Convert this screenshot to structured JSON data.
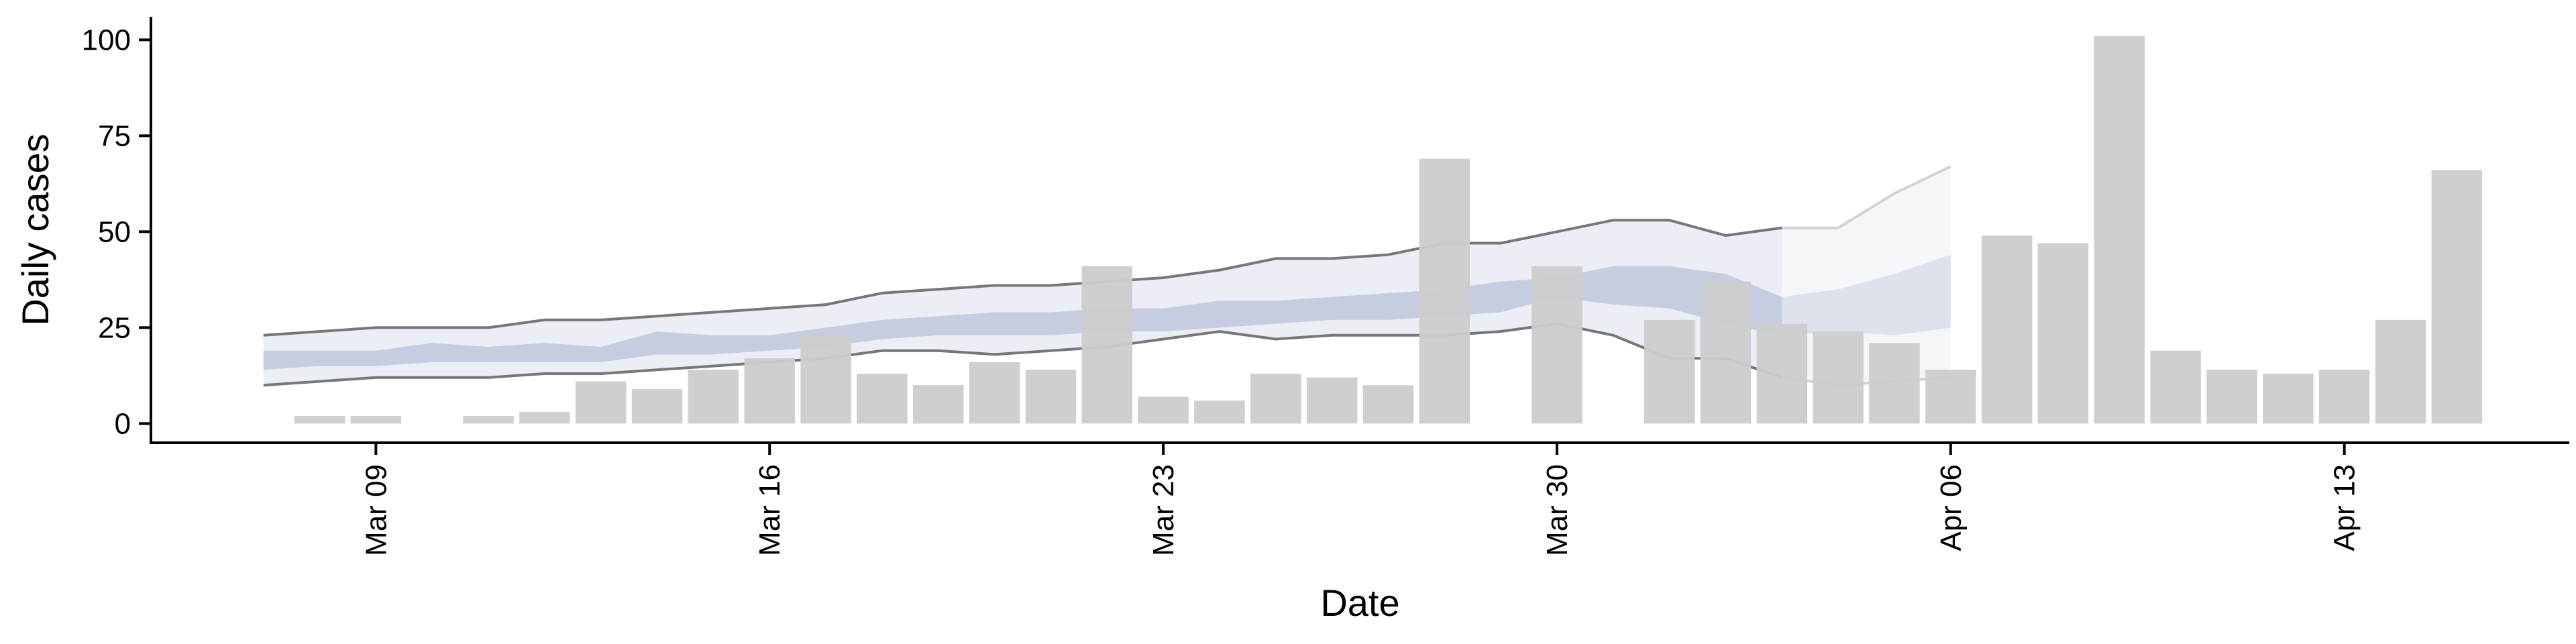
{
  "chart_data": {
    "type": "bar",
    "xlabel": "Date",
    "ylabel": "Daily cases",
    "ylim": [
      -5,
      106
    ],
    "y_ticks": [
      0,
      25,
      50,
      75,
      100
    ],
    "x_ticks": [
      {
        "date": "2020-03-09",
        "label": "Mar 09"
      },
      {
        "date": "2020-03-16",
        "label": "Mar 16"
      },
      {
        "date": "2020-03-23",
        "label": "Mar 23"
      },
      {
        "date": "2020-03-30",
        "label": "Mar 30"
      },
      {
        "date": "2020-04-06",
        "label": "Apr 06"
      },
      {
        "date": "2020-04-13",
        "label": "Apr 13"
      }
    ],
    "xlim": [
      "2020-03-05",
      "2020-04-17"
    ],
    "grid": false,
    "colors": {
      "bars": "#cccccc",
      "inner_band": "#aab3cf",
      "outer_band": "#dde0ec",
      "bound_lines": "#777777"
    },
    "bars": [
      {
        "date": "2020-03-08",
        "value": 2
      },
      {
        "date": "2020-03-09",
        "value": 2
      },
      {
        "date": "2020-03-11",
        "value": 2
      },
      {
        "date": "2020-03-12",
        "value": 3
      },
      {
        "date": "2020-03-13",
        "value": 11
      },
      {
        "date": "2020-03-14",
        "value": 9
      },
      {
        "date": "2020-03-15",
        "value": 14
      },
      {
        "date": "2020-03-16",
        "value": 17
      },
      {
        "date": "2020-03-17",
        "value": 23
      },
      {
        "date": "2020-03-18",
        "value": 13
      },
      {
        "date": "2020-03-19",
        "value": 10
      },
      {
        "date": "2020-03-20",
        "value": 16
      },
      {
        "date": "2020-03-21",
        "value": 14
      },
      {
        "date": "2020-03-22",
        "value": 41
      },
      {
        "date": "2020-03-23",
        "value": 7
      },
      {
        "date": "2020-03-24",
        "value": 6
      },
      {
        "date": "2020-03-25",
        "value": 13
      },
      {
        "date": "2020-03-26",
        "value": 12
      },
      {
        "date": "2020-03-27",
        "value": 10
      },
      {
        "date": "2020-03-28",
        "value": 69
      },
      {
        "date": "2020-03-30",
        "value": 41
      },
      {
        "date": "2020-04-01",
        "value": 27
      },
      {
        "date": "2020-04-02",
        "value": 37
      },
      {
        "date": "2020-04-03",
        "value": 26
      },
      {
        "date": "2020-04-04",
        "value": 24
      },
      {
        "date": "2020-04-05",
        "value": 21
      },
      {
        "date": "2020-04-06",
        "value": 14
      },
      {
        "date": "2020-04-07",
        "value": 49
      },
      {
        "date": "2020-04-08",
        "value": 47
      },
      {
        "date": "2020-04-09",
        "value": 101
      },
      {
        "date": "2020-04-10",
        "value": 19
      },
      {
        "date": "2020-04-11",
        "value": 14
      },
      {
        "date": "2020-04-12",
        "value": 13
      },
      {
        "date": "2020-04-13",
        "value": 14
      },
      {
        "date": "2020-04-14",
        "value": 27
      },
      {
        "date": "2020-04-15",
        "value": 66
      }
    ],
    "band_dates": [
      "2020-03-07",
      "2020-03-08",
      "2020-03-09",
      "2020-03-10",
      "2020-03-11",
      "2020-03-12",
      "2020-03-13",
      "2020-03-14",
      "2020-03-15",
      "2020-03-16",
      "2020-03-17",
      "2020-03-18",
      "2020-03-19",
      "2020-03-20",
      "2020-03-21",
      "2020-03-22",
      "2020-03-23",
      "2020-03-24",
      "2020-03-25",
      "2020-03-26",
      "2020-03-27",
      "2020-03-28",
      "2020-03-29",
      "2020-03-30",
      "2020-03-31",
      "2020-04-01",
      "2020-04-02",
      "2020-04-03",
      "2020-04-04",
      "2020-04-05",
      "2020-04-06"
    ],
    "outer_upper": [
      23,
      24,
      25,
      25,
      25,
      27,
      27,
      28,
      29,
      30,
      31,
      34,
      35,
      36,
      36,
      37,
      38,
      40,
      43,
      43,
      44,
      47,
      47,
      50,
      53,
      53,
      49,
      51,
      51,
      60,
      67
    ],
    "outer_lower": [
      10,
      11,
      12,
      12,
      12,
      13,
      13,
      14,
      15,
      16,
      17,
      19,
      19,
      18,
      19,
      20,
      22,
      24,
      22,
      23,
      23,
      23,
      24,
      26,
      23,
      17,
      17,
      12,
      10,
      11,
      12
    ],
    "inner_upper": [
      19,
      19,
      19,
      21,
      20,
      21,
      20,
      24,
      23,
      23,
      25,
      27,
      28,
      29,
      29,
      30,
      30,
      32,
      32,
      33,
      34,
      35,
      37,
      38,
      41,
      41,
      39,
      33,
      35,
      39,
      44
    ],
    "inner_lower": [
      14,
      15,
      15,
      16,
      16,
      16,
      16,
      18,
      18,
      19,
      20,
      22,
      23,
      23,
      23,
      24,
      24,
      25,
      26,
      27,
      27,
      28,
      29,
      33,
      31,
      30,
      26,
      23,
      24,
      23,
      25
    ],
    "forecast_start_date": "2020-04-03"
  }
}
